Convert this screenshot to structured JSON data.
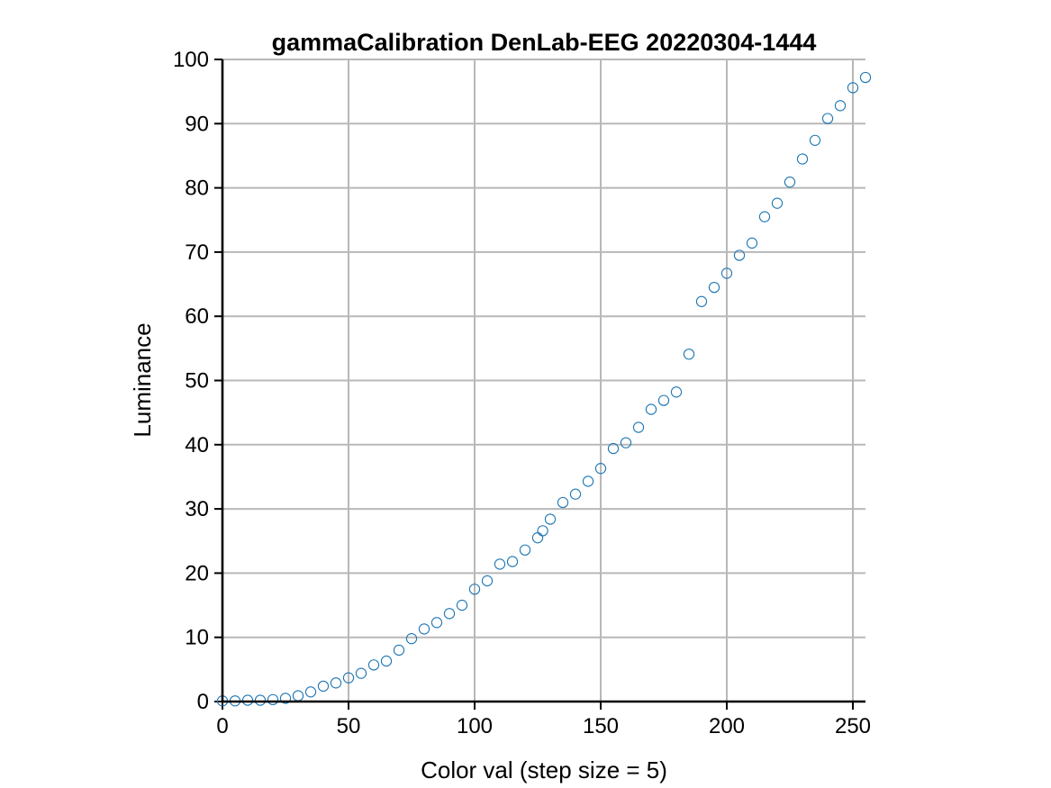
{
  "chart_data": {
    "type": "scatter",
    "title": "gammaCalibration DenLab-EEG 20220304-1444",
    "xlabel": "Color val (step size = 5)",
    "ylabel": "Luminance",
    "xlim": [
      0,
      255
    ],
    "ylim": [
      0,
      100
    ],
    "xticks": [
      0,
      50,
      100,
      150,
      200,
      250
    ],
    "yticks": [
      0,
      10,
      20,
      30,
      40,
      50,
      60,
      70,
      80,
      90,
      100
    ],
    "grid": true,
    "marker_color": "#1f77b4",
    "series": [
      {
        "x": [
          0,
          5,
          10,
          15,
          20,
          25,
          30,
          35,
          40,
          45,
          50,
          55,
          60,
          65,
          70,
          75,
          80,
          85,
          90,
          95,
          100,
          105,
          110,
          115,
          120,
          125,
          127,
          130,
          135,
          140,
          145,
          150,
          155,
          160,
          165,
          170,
          175,
          180,
          185,
          190,
          195,
          200,
          205,
          210,
          215,
          220,
          225,
          230,
          235,
          240,
          245,
          250,
          255
        ],
        "y": [
          0.1,
          0.1,
          0.2,
          0.2,
          0.3,
          0.5,
          0.9,
          1.5,
          2.4,
          2.9,
          3.7,
          4.4,
          5.7,
          6.3,
          8.0,
          9.8,
          11.3,
          12.3,
          13.7,
          15.0,
          17.5,
          18.8,
          21.4,
          21.8,
          23.6,
          25.5,
          26.6,
          28.4,
          31.0,
          32.3,
          34.3,
          36.3,
          39.4,
          40.3,
          42.7,
          45.5,
          46.9,
          48.2,
          54.1,
          62.3,
          64.5,
          66.7,
          69.5,
          71.4,
          75.5,
          77.6,
          80.9,
          84.5,
          87.4,
          90.8,
          92.8,
          95.6,
          97.2
        ]
      }
    ]
  }
}
